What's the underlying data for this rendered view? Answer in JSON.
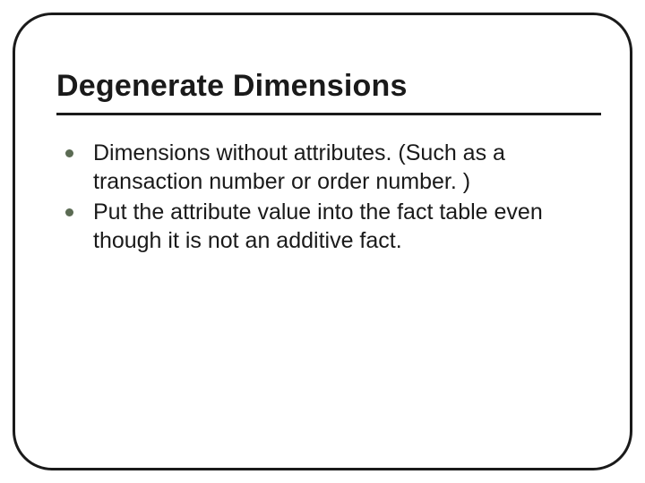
{
  "slide": {
    "title": "Degenerate Dimensions",
    "title_fontsize": 34,
    "title_color": "#1a1a1a",
    "underline_color": "#1a1a1a",
    "frame_border_color": "#1a1a1a",
    "frame_border_radius": 44,
    "background_color": "#ffffff",
    "bullets": [
      {
        "text": "Dimensions without attributes.  (Such as a transaction number or order number. )"
      },
      {
        "text": "Put the attribute value into the fact table even though it is not an additive fact."
      }
    ],
    "bullet_fontsize": 25,
    "bullet_text_color": "#1a1a1a",
    "bullet_dot_color": "#5b6b53"
  }
}
